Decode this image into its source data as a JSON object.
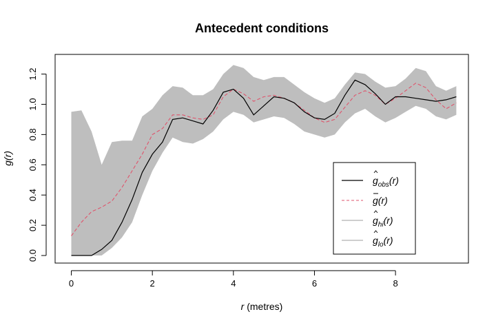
{
  "chart_data": {
    "type": "line",
    "title": "Antecedent conditions",
    "xlabel_var": "r",
    "xlabel_unit": " (metres)",
    "ylabel_var": "g",
    "ylabel_arg": "(r)",
    "xlim": [
      -0.4,
      9.8
    ],
    "ylim": [
      -0.05,
      1.33
    ],
    "x_ticks": [
      0,
      2,
      4,
      6,
      8
    ],
    "y_ticks": [
      0.0,
      0.2,
      0.4,
      0.6,
      0.8,
      1.0,
      1.2
    ],
    "y_tick_labels": [
      "0.0",
      "0.2",
      "0.4",
      "0.6",
      "0.8",
      "1.0",
      "1.2"
    ],
    "grid": false,
    "legend_position": "bottom-right",
    "colors": {
      "obs": "#000000",
      "mean": "#DF536B",
      "envelope": "#BEBEBE"
    },
    "legend": [
      {
        "key": "obs",
        "base": "g",
        "accent": "hat",
        "sub": "obs",
        "arg": "(r)",
        "style": "solid"
      },
      {
        "key": "mean",
        "base": "g",
        "accent": "bar",
        "sub": "",
        "arg": "(r)",
        "style": "dashed"
      },
      {
        "key": "hi",
        "base": "g",
        "accent": "hat",
        "sub": "hi",
        "arg": "(r)",
        "style": "envelope"
      },
      {
        "key": "lo",
        "base": "g",
        "accent": "hat",
        "sub": "lo",
        "arg": "(r)",
        "style": "envelope"
      }
    ],
    "x": [
      0,
      0.25,
      0.5,
      0.75,
      1,
      1.25,
      1.5,
      1.75,
      2,
      2.25,
      2.5,
      2.75,
      3,
      3.25,
      3.5,
      3.75,
      4,
      4.25,
      4.5,
      4.75,
      5,
      5.25,
      5.5,
      5.75,
      6,
      6.25,
      6.5,
      6.75,
      7,
      7.25,
      7.5,
      7.75,
      8,
      8.25,
      8.5,
      8.75,
      9,
      9.25,
      9.5
    ],
    "series": [
      {
        "key": "obs",
        "values": [
          0.0,
          0.0,
          0.0,
          0.04,
          0.1,
          0.22,
          0.37,
          0.55,
          0.67,
          0.75,
          0.9,
          0.91,
          0.89,
          0.87,
          0.96,
          1.08,
          1.1,
          1.04,
          0.93,
          0.99,
          1.05,
          1.04,
          1.01,
          0.95,
          0.91,
          0.9,
          0.94,
          1.06,
          1.16,
          1.13,
          1.07,
          1.0,
          1.05,
          1.05,
          1.04,
          1.03,
          1.02,
          1.03,
          1.05
        ]
      },
      {
        "key": "mean",
        "values": [
          0.13,
          0.22,
          0.29,
          0.32,
          0.36,
          0.45,
          0.56,
          0.67,
          0.8,
          0.84,
          0.93,
          0.93,
          0.91,
          0.9,
          0.93,
          1.05,
          1.1,
          1.07,
          1.02,
          1.05,
          1.06,
          1.04,
          1.01,
          0.96,
          0.91,
          0.88,
          0.9,
          0.98,
          1.06,
          1.09,
          1.06,
          1.0,
          1.04,
          1.09,
          1.14,
          1.11,
          1.03,
          0.97,
          1.01
        ]
      },
      {
        "key": "hi",
        "values": [
          0.95,
          0.96,
          0.82,
          0.6,
          0.75,
          0.76,
          0.76,
          0.92,
          0.97,
          1.06,
          1.12,
          1.11,
          1.06,
          1.06,
          1.1,
          1.2,
          1.26,
          1.24,
          1.18,
          1.16,
          1.18,
          1.18,
          1.13,
          1.08,
          1.04,
          1.01,
          1.04,
          1.13,
          1.21,
          1.2,
          1.15,
          1.11,
          1.12,
          1.17,
          1.24,
          1.22,
          1.12,
          1.09,
          1.12
        ]
      },
      {
        "key": "lo",
        "values": [
          0.0,
          0.0,
          0.0,
          0.0,
          0.05,
          0.12,
          0.22,
          0.4,
          0.56,
          0.68,
          0.78,
          0.75,
          0.74,
          0.77,
          0.82,
          0.9,
          0.95,
          0.93,
          0.88,
          0.9,
          0.92,
          0.91,
          0.87,
          0.82,
          0.8,
          0.78,
          0.8,
          0.88,
          0.94,
          0.97,
          0.92,
          0.88,
          0.91,
          0.95,
          0.99,
          0.97,
          0.92,
          0.9,
          0.93
        ]
      }
    ]
  }
}
